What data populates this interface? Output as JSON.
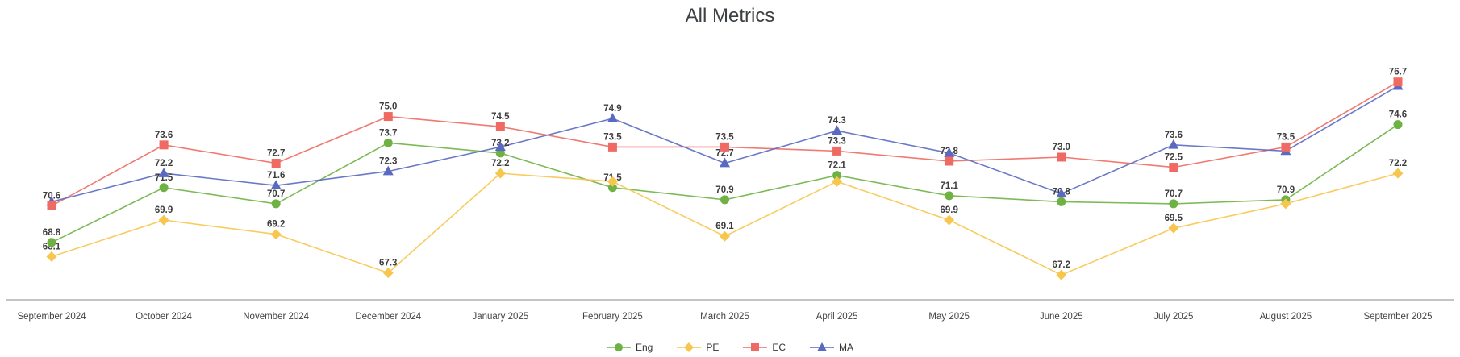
{
  "title": "All Metrics",
  "chart_data": {
    "type": "line",
    "title": "All Metrics",
    "categories": [
      "September 2024",
      "October 2024",
      "November 2024",
      "December 2024",
      "January 2025",
      "February 2025",
      "March 2025",
      "April 2025",
      "May 2025",
      "June 2025",
      "July 2025",
      "August 2025",
      "September 2025"
    ],
    "series": [
      {
        "name": "Eng",
        "color": "#6fb244",
        "marker": "circle",
        "values": [
          68.8,
          71.5,
          70.7,
          73.7,
          73.2,
          71.5,
          70.9,
          72.1,
          71.1,
          70.8,
          70.7,
          70.9,
          74.6
        ],
        "labels": [
          "68.8",
          "71.5",
          "70.7",
          "73.7",
          "73.2",
          "71.5",
          "70.9",
          "72.1",
          "71.1",
          "70.8",
          "70.7",
          "70.9",
          "74.6"
        ]
      },
      {
        "name": "PE",
        "color": "#f7c64f",
        "marker": "diamond",
        "values": [
          68.1,
          69.9,
          69.2,
          67.3,
          72.2,
          71.8,
          69.1,
          71.8,
          69.9,
          67.2,
          69.5,
          70.7,
          72.2
        ],
        "labels": [
          "68.1",
          "69.9",
          "69.2",
          "67.3",
          "72.2",
          null,
          "69.1",
          null,
          "69.9",
          "67.2",
          "69.5",
          null,
          "72.2"
        ]
      },
      {
        "name": "EC",
        "color": "#ee6a62",
        "marker": "square",
        "values": [
          70.6,
          73.6,
          72.7,
          75.0,
          74.5,
          73.5,
          73.5,
          73.3,
          72.8,
          73.0,
          72.5,
          73.5,
          76.7
        ],
        "labels": [
          "70.6",
          "73.6",
          "72.7",
          "75.0",
          "74.5",
          "73.5",
          "73.5",
          "73.3",
          "72.8",
          "73.0",
          "72.5",
          "73.5",
          "76.7"
        ]
      },
      {
        "name": "MA",
        "color": "#5a6ac1",
        "marker": "triangle",
        "values": [
          70.8,
          72.2,
          71.6,
          72.3,
          73.5,
          74.9,
          72.7,
          74.3,
          73.2,
          71.2,
          73.6,
          73.3,
          76.5
        ],
        "labels": [
          null,
          "72.2",
          "71.6",
          "72.3",
          null,
          "74.9",
          "72.7",
          "74.3",
          null,
          null,
          "73.6",
          null,
          null
        ]
      }
    ],
    "xlabel": "",
    "ylabel": "",
    "ylim": [
      66.5,
      78.0
    ],
    "grid": false,
    "legend_position": "bottom",
    "legend_entries": [
      "Eng",
      "PE",
      "EC",
      "MA"
    ],
    "label_color": "#3d3d3d",
    "axis_line_color": "#8a8a8a",
    "tick_label_color": "#424242"
  }
}
